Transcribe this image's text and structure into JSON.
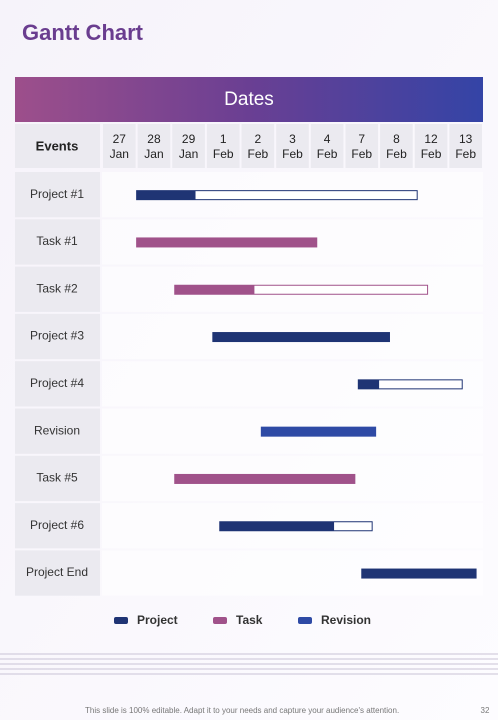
{
  "chart_data": {
    "type": "gantt",
    "title": "Gantt Chart",
    "header": "Dates",
    "row_header": "Events",
    "dates": [
      [
        "27",
        "Jan"
      ],
      [
        "28",
        "Jan"
      ],
      [
        "29",
        "Jan"
      ],
      [
        "1",
        "Feb"
      ],
      [
        "2",
        "Feb"
      ],
      [
        "3",
        "Feb"
      ],
      [
        "4",
        "Feb"
      ],
      [
        "7",
        "Feb"
      ],
      [
        "8",
        "Feb"
      ],
      [
        "12",
        "Feb"
      ],
      [
        "13",
        "Feb"
      ]
    ],
    "xlim": [
      0,
      11
    ],
    "series": [
      {
        "name": "Project",
        "color": "#1f3474"
      },
      {
        "name": "Task",
        "color": "#a0528a"
      },
      {
        "name": "Revision",
        "color": "#2e4aa5"
      }
    ],
    "tasks": [
      {
        "name": "Project #1",
        "series": 0,
        "start": 1.0,
        "end": 9.1,
        "done": 2.7
      },
      {
        "name": "Task #1",
        "series": 1,
        "start": 1.0,
        "end": 6.2,
        "done": 6.2
      },
      {
        "name": "Task #2",
        "series": 1,
        "start": 2.1,
        "end": 9.4,
        "done": 4.4
      },
      {
        "name": "Project #3",
        "series": 0,
        "start": 3.2,
        "end": 8.3,
        "done": 8.3
      },
      {
        "name": "Project #4",
        "series": 0,
        "start": 7.4,
        "end": 10.4,
        "done": 8.0
      },
      {
        "name": "Revision",
        "series": 2,
        "start": 4.6,
        "end": 7.9,
        "done": 7.9
      },
      {
        "name": "Task #5",
        "series": 1,
        "start": 2.1,
        "end": 7.3,
        "done": 7.3
      },
      {
        "name": "Project #6",
        "series": 0,
        "start": 3.4,
        "end": 7.8,
        "done": 6.7
      },
      {
        "name": "Project End",
        "series": 0,
        "start": 7.5,
        "end": 10.8,
        "done": 10.8
      }
    ]
  },
  "footer": {
    "note": "This slide is 100% editable. Adapt it to your needs and capture your audience's attention.",
    "page": "32"
  }
}
